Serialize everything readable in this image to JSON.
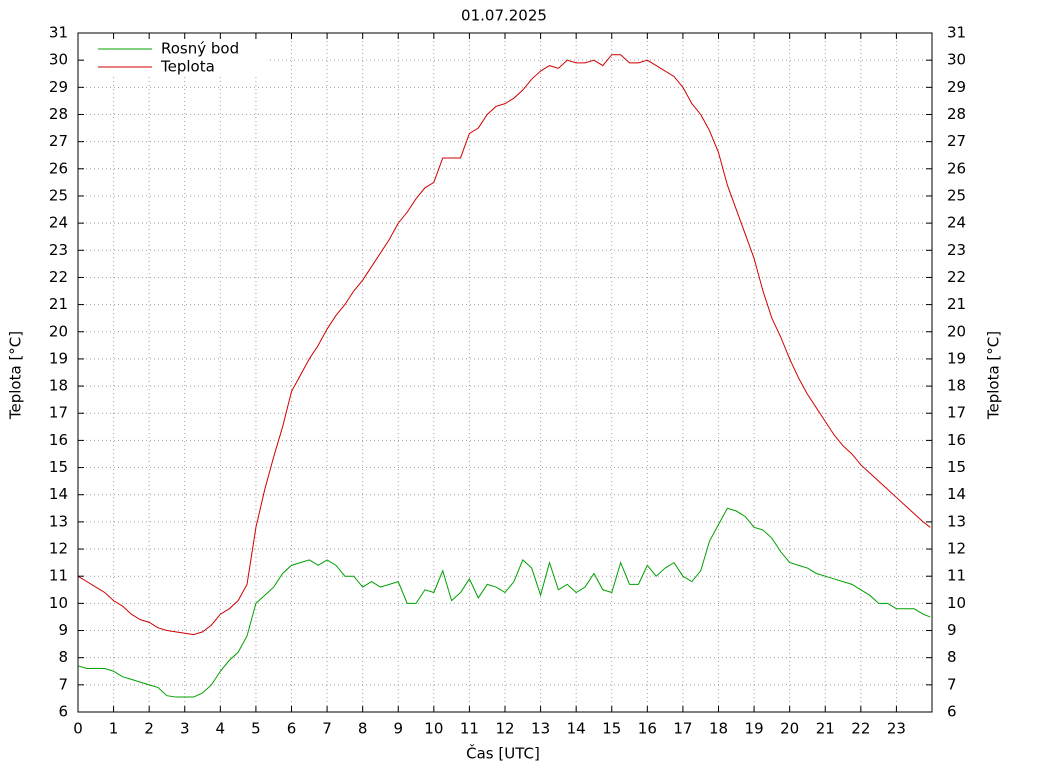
{
  "chart_data": {
    "type": "line",
    "title": "01.07.2025",
    "xlabel": "Čas [UTC]",
    "ylabel": "Teplota [°C]",
    "y2label": "Teplota [°C]",
    "x": [
      0,
      0.25,
      0.5,
      0.75,
      1,
      1.25,
      1.5,
      1.75,
      2,
      2.25,
      2.5,
      2.75,
      3,
      3.25,
      3.5,
      3.75,
      4,
      4.25,
      4.5,
      4.75,
      5,
      5.25,
      5.5,
      5.75,
      6,
      6.25,
      6.5,
      6.75,
      7,
      7.25,
      7.5,
      7.75,
      8,
      8.25,
      8.5,
      8.75,
      9,
      9.25,
      9.5,
      9.75,
      10,
      10.25,
      10.5,
      10.75,
      11,
      11.25,
      11.5,
      11.75,
      12,
      12.25,
      12.5,
      12.75,
      13,
      13.25,
      13.5,
      13.75,
      14,
      14.25,
      14.5,
      14.75,
      15,
      15.25,
      15.5,
      15.75,
      16,
      16.25,
      16.5,
      16.75,
      17,
      17.25,
      17.5,
      17.75,
      18,
      18.25,
      18.5,
      18.75,
      19,
      19.25,
      19.5,
      19.75,
      20,
      20.25,
      20.5,
      20.75,
      21,
      21.25,
      21.5,
      21.75,
      22,
      22.25,
      22.5,
      22.75,
      23,
      23.25,
      23.5,
      23.75,
      23.95
    ],
    "series": [
      {
        "name": "Rosný bod",
        "color": "#00a000",
        "values": [
          7.7,
          7.6,
          7.6,
          7.6,
          7.5,
          7.3,
          7.2,
          7.1,
          7.0,
          6.9,
          6.6,
          6.55,
          6.55,
          6.55,
          6.7,
          7.0,
          7.5,
          7.9,
          8.2,
          8.8,
          10.0,
          10.3,
          10.6,
          11.1,
          11.4,
          11.5,
          11.6,
          11.4,
          11.6,
          11.4,
          11.0,
          11.0,
          10.6,
          10.8,
          10.6,
          10.7,
          10.8,
          10.0,
          10.0,
          10.5,
          10.4,
          11.2,
          10.1,
          10.4,
          10.9,
          10.2,
          10.7,
          10.6,
          10.4,
          10.8,
          11.6,
          11.3,
          10.3,
          11.5,
          10.5,
          10.7,
          10.4,
          10.6,
          11.1,
          10.5,
          10.4,
          11.5,
          10.7,
          10.7,
          11.4,
          11.0,
          11.3,
          11.5,
          11.0,
          10.8,
          11.2,
          12.3,
          12.9,
          13.5,
          13.4,
          13.2,
          12.8,
          12.7,
          12.4,
          11.9,
          11.5,
          11.4,
          11.3,
          11.1,
          11.0,
          10.9,
          10.8,
          10.7,
          10.5,
          10.3,
          10.0,
          10.0,
          9.8,
          9.8,
          9.8,
          9.6,
          9.5
        ]
      },
      {
        "name": "Teplota",
        "color": "#d00000",
        "values": [
          11.0,
          10.8,
          10.6,
          10.4,
          10.1,
          9.9,
          9.6,
          9.4,
          9.3,
          9.1,
          9.0,
          8.95,
          8.9,
          8.85,
          8.95,
          9.2,
          9.6,
          9.8,
          10.1,
          10.7,
          12.8,
          14.2,
          15.4,
          16.5,
          17.8,
          18.4,
          19.0,
          19.5,
          20.1,
          20.6,
          21.0,
          21.5,
          21.9,
          22.4,
          22.9,
          23.4,
          24.0,
          24.4,
          24.9,
          25.3,
          25.5,
          26.4,
          26.4,
          26.4,
          27.3,
          27.5,
          28.0,
          28.3,
          28.4,
          28.6,
          28.9,
          29.3,
          29.6,
          29.8,
          29.7,
          30.0,
          29.9,
          29.9,
          30.0,
          29.8,
          30.2,
          30.2,
          29.9,
          29.9,
          30.0,
          29.8,
          29.6,
          29.4,
          29.0,
          28.4,
          28.0,
          27.4,
          26.6,
          25.4,
          24.5,
          23.6,
          22.7,
          21.5,
          20.5,
          19.8,
          19.0,
          18.3,
          17.7,
          17.2,
          16.7,
          16.2,
          15.8,
          15.5,
          15.1,
          14.8,
          14.5,
          14.2,
          13.9,
          13.6,
          13.3,
          13.0,
          12.8
        ]
      }
    ],
    "xlim": [
      0,
      24
    ],
    "xticks": [
      0,
      1,
      2,
      3,
      4,
      5,
      6,
      7,
      8,
      9,
      10,
      11,
      12,
      13,
      14,
      15,
      16,
      17,
      18,
      19,
      20,
      21,
      22,
      23
    ],
    "ylim": [
      6,
      31
    ],
    "yticks": [
      6,
      7,
      8,
      9,
      10,
      11,
      12,
      13,
      14,
      15,
      16,
      17,
      18,
      19,
      20,
      21,
      22,
      23,
      24,
      25,
      26,
      27,
      28,
      29,
      30,
      31
    ],
    "grid": true,
    "legend": "top-left"
  }
}
